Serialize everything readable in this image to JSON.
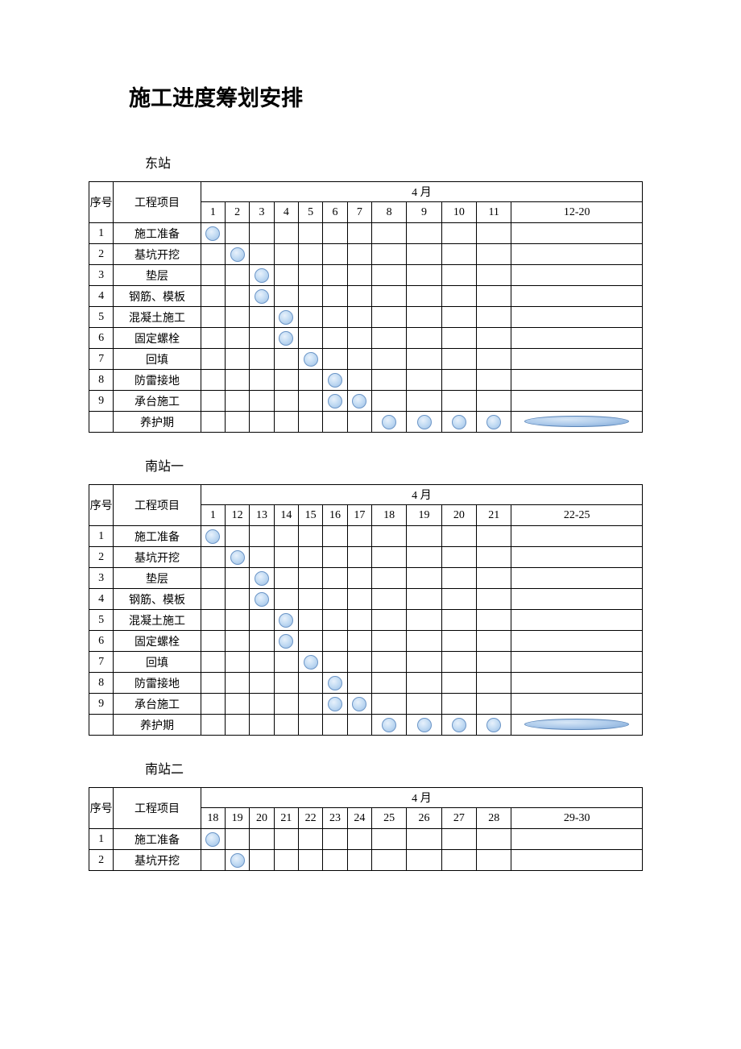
{
  "title": "施工进度筹划安排",
  "month_label": "4 月",
  "seq_label": "序号",
  "proj_label": "工程项目",
  "marker": {
    "dot_fill": "#c5ddf4",
    "dot_border": "#6b95c7",
    "ellipse_fill": "#aecbeb",
    "ellipse_border": "#5a85b8"
  },
  "tables": [
    {
      "section": "东站",
      "days": [
        "1",
        "2",
        "3",
        "4",
        "5",
        "6",
        "7",
        "8",
        "9",
        "10",
        "11",
        "12-20"
      ],
      "rows": [
        {
          "seq": "1",
          "name": "施工准备",
          "marks": [
            0
          ]
        },
        {
          "seq": "2",
          "name": "基坑开挖",
          "marks": [
            1
          ]
        },
        {
          "seq": "3",
          "name": "垫层",
          "marks": [
            2
          ]
        },
        {
          "seq": "4",
          "name": "钢筋、模板",
          "marks": [
            2
          ]
        },
        {
          "seq": "5",
          "name": "混凝土施工",
          "marks": [
            3
          ]
        },
        {
          "seq": "6",
          "name": "固定螺栓",
          "marks": [
            3
          ]
        },
        {
          "seq": "7",
          "name": "回填",
          "marks": [
            4
          ]
        },
        {
          "seq": "8",
          "name": "防雷接地",
          "marks": [
            5
          ]
        },
        {
          "seq": "9",
          "name": "承台施工",
          "marks": [
            5,
            6
          ]
        },
        {
          "seq": "",
          "name": "养护期",
          "marks": [
            7,
            8,
            9,
            10
          ],
          "ellipse_at": 11
        }
      ]
    },
    {
      "section": "南站一",
      "days": [
        "1",
        "12",
        "13",
        "14",
        "15",
        "16",
        "17",
        "18",
        "19",
        "20",
        "21",
        "22-25"
      ],
      "rows": [
        {
          "seq": "1",
          "name": "施工准备",
          "marks": [
            0
          ]
        },
        {
          "seq": "2",
          "name": "基坑开挖",
          "marks": [
            1
          ]
        },
        {
          "seq": "3",
          "name": "垫层",
          "marks": [
            2
          ]
        },
        {
          "seq": "4",
          "name": "钢筋、模板",
          "marks": [
            2
          ]
        },
        {
          "seq": "5",
          "name": "混凝土施工",
          "marks": [
            3
          ]
        },
        {
          "seq": "6",
          "name": "固定螺栓",
          "marks": [
            3
          ]
        },
        {
          "seq": "7",
          "name": "回填",
          "marks": [
            4
          ]
        },
        {
          "seq": "8",
          "name": "防雷接地",
          "marks": [
            5
          ]
        },
        {
          "seq": "9",
          "name": "承台施工",
          "marks": [
            5,
            6
          ]
        },
        {
          "seq": "",
          "name": "养护期",
          "marks": [
            7,
            8,
            9,
            10
          ],
          "ellipse_at": 11
        }
      ]
    },
    {
      "section": "南站二",
      "days": [
        "18",
        "19",
        "20",
        "21",
        "22",
        "23",
        "24",
        "25",
        "26",
        "27",
        "28",
        "29-30"
      ],
      "rows": [
        {
          "seq": "1",
          "name": "施工准备",
          "marks": [
            0
          ]
        },
        {
          "seq": "2",
          "name": "基坑开挖",
          "marks": [
            1
          ]
        }
      ]
    }
  ]
}
